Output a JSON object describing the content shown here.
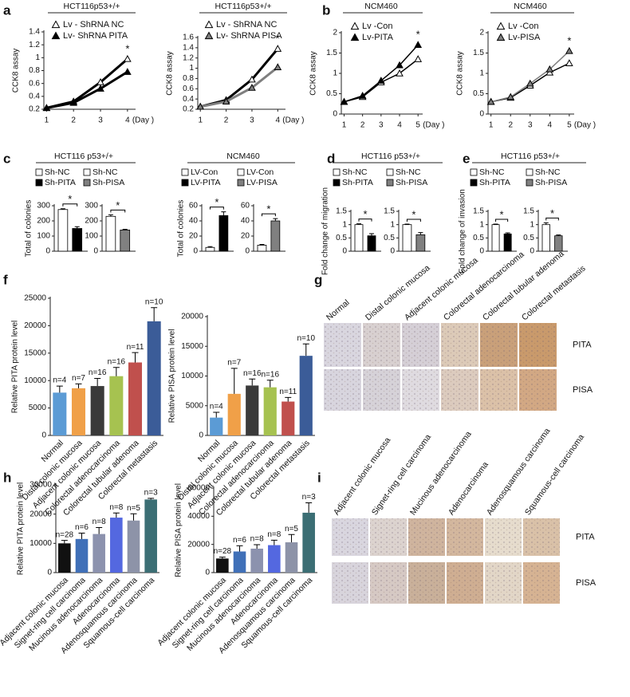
{
  "panel_labels": [
    "a",
    "b",
    "c",
    "d",
    "e",
    "f",
    "g",
    "h",
    "i"
  ],
  "chart_data": [
    {
      "type": "line",
      "title": "HCT116p53+/+",
      "y_label": "CCK8 assay",
      "x_label": "(Day )",
      "significance": "*",
      "x": [
        1,
        2,
        3,
        4
      ],
      "xlim": [
        0.9,
        4.3
      ],
      "xticks": [
        1,
        2,
        3,
        4
      ],
      "ylim": [
        0.2,
        1.4
      ],
      "yticks": [
        0.2,
        0.4,
        0.6,
        0.8,
        1,
        1.2,
        1.4
      ],
      "series": [
        {
          "name": "Lv - ShRNA NC",
          "color": "#000000",
          "marker": "open",
          "values": [
            0.22,
            0.32,
            0.62,
            0.98
          ]
        },
        {
          "name": "Lv- ShRNA PITA",
          "color": "#000000",
          "marker": "filled",
          "values": [
            0.22,
            0.3,
            0.52,
            0.78
          ]
        }
      ]
    },
    {
      "type": "line",
      "title": "HCT116p53+/+",
      "y_label": "CCK8 assay",
      "x_label": "(Day )",
      "significance": "*",
      "x": [
        1,
        2,
        3,
        4
      ],
      "xlim": [
        0.9,
        4.3
      ],
      "xticks": [
        1,
        2,
        3,
        4
      ],
      "ylim": [
        0.2,
        1.6
      ],
      "yticks": [
        0.2,
        0.4,
        0.6,
        0.8,
        1,
        1.2,
        1.4,
        1.6
      ],
      "series": [
        {
          "name": "Lv - ShRNA NC",
          "color": "#000000",
          "marker": "open",
          "values": [
            0.25,
            0.38,
            0.78,
            1.38
          ]
        },
        {
          "name": "Lv- ShRNA  PISA",
          "color": "#7f7f7f",
          "marker": "filled",
          "values": [
            0.25,
            0.35,
            0.62,
            1.02
          ]
        }
      ]
    },
    {
      "type": "line",
      "title": "NCM460",
      "y_label": "CCK8 assay",
      "x_label": "(Day )",
      "significance": "*",
      "x": [
        1,
        2,
        3,
        4,
        5
      ],
      "xlim": [
        0.85,
        5.25
      ],
      "xticks": [
        1,
        2,
        3,
        4,
        5
      ],
      "ylim": [
        0,
        2
      ],
      "yticks": [
        0,
        0.5,
        1,
        1.5,
        2
      ],
      "series": [
        {
          "name": "Lv -Con",
          "color": "#000000",
          "marker": "open",
          "values": [
            0.3,
            0.42,
            0.78,
            1.0,
            1.35
          ]
        },
        {
          "name": "Lv-PITA",
          "color": "#000000",
          "marker": "filled",
          "values": [
            0.3,
            0.45,
            0.82,
            1.2,
            1.7
          ]
        }
      ]
    },
    {
      "type": "line",
      "title": "NCM460",
      "y_label": "CCK8 assay",
      "x_label": "(Day )",
      "significance": "*",
      "x": [
        1,
        2,
        3,
        4,
        5
      ],
      "xlim": [
        0.85,
        5.25
      ],
      "xticks": [
        1,
        2,
        3,
        4,
        5
      ],
      "ylim": [
        0,
        2
      ],
      "yticks": [
        0,
        0.5,
        1,
        1.5,
        2
      ],
      "series": [
        {
          "name": "Lv -Con",
          "color": "#000000",
          "marker": "open",
          "values": [
            0.3,
            0.4,
            0.7,
            1.02,
            1.25
          ]
        },
        {
          "name": "Lv-PISA",
          "color": "#7f7f7f",
          "marker": "filled",
          "values": [
            0.3,
            0.42,
            0.75,
            1.1,
            1.55
          ]
        }
      ]
    },
    {
      "type": "bar",
      "title": "HCT116 p53+/+",
      "y_label": "Total of colonies",
      "significance": "*",
      "categories": [
        null
      ],
      "ylim": [
        0,
        300
      ],
      "yticks": [
        0,
        100,
        200,
        300
      ],
      "series": [
        {
          "name": "Sh-NC",
          "color": "#ffffff",
          "values": [
            275
          ],
          "errors": [
            5
          ]
        },
        {
          "name": "Sh-PITA",
          "color": "#000000",
          "values": [
            150
          ],
          "errors": [
            12
          ]
        }
      ]
    },
    {
      "type": "bar",
      "significance": "*",
      "categories": [
        null
      ],
      "ylim": [
        0,
        300
      ],
      "yticks": [
        0,
        100,
        200,
        300
      ],
      "series": [
        {
          "name": "Sh-NC",
          "color": "#ffffff",
          "values": [
            230
          ],
          "errors": [
            10
          ]
        },
        {
          "name": "Sh-PISA",
          "color": "#808080",
          "values": [
            140
          ],
          "errors": [
            5
          ]
        }
      ]
    },
    {
      "type": "bar",
      "title": "NCM460",
      "y_label": "Total of colonies",
      "significance": "*",
      "categories": [
        null
      ],
      "ylim": [
        0,
        60
      ],
      "yticks": [
        0,
        20,
        40,
        60
      ],
      "series": [
        {
          "name": "LV-Con",
          "color": "#ffffff",
          "values": [
            5
          ],
          "errors": [
            1
          ]
        },
        {
          "name": "LV-PITA",
          "color": "#000000",
          "values": [
            47
          ],
          "errors": [
            5
          ]
        }
      ]
    },
    {
      "type": "bar",
      "significance": "*",
      "categories": [
        null
      ],
      "ylim": [
        0,
        60
      ],
      "yticks": [
        0,
        20,
        40,
        60
      ],
      "series": [
        {
          "name": "LV-Con",
          "color": "#ffffff",
          "values": [
            8
          ],
          "errors": [
            1
          ]
        },
        {
          "name": "LV-PISA",
          "color": "#808080",
          "values": [
            40
          ],
          "errors": [
            3
          ]
        }
      ]
    },
    {
      "type": "bar",
      "title": "HCT116 p53+/+",
      "y_label": "Fold change of migration",
      "significance": "*",
      "categories": [
        null
      ],
      "ylim": [
        0,
        1.5
      ],
      "yticks": [
        0,
        0.5,
        1,
        1.5
      ],
      "series": [
        {
          "name": "Sh-NC",
          "color": "#ffffff",
          "values": [
            1.0
          ],
          "errors": [
            0.03
          ]
        },
        {
          "name": "Sh-PITA",
          "color": "#000000",
          "values": [
            0.58
          ],
          "errors": [
            0.08
          ]
        }
      ]
    },
    {
      "type": "bar",
      "significance": "*",
      "categories": [
        null
      ],
      "ylim": [
        0,
        1.5
      ],
      "yticks": [
        0,
        0.5,
        1,
        1.5
      ],
      "series": [
        {
          "name": "Sh-NC",
          "color": "#ffffff",
          "values": [
            1.0
          ],
          "errors": [
            0.02
          ]
        },
        {
          "name": "Sh-PISA",
          "color": "#808080",
          "values": [
            0.62
          ],
          "errors": [
            0.08
          ]
        }
      ]
    },
    {
      "type": "bar",
      "title": "HCT116 p53+/+",
      "y_label": "Fold change of invasion",
      "significance": "*",
      "categories": [
        null
      ],
      "ylim": [
        0,
        1.5
      ],
      "yticks": [
        0,
        0.5,
        1,
        1.5
      ],
      "series": [
        {
          "name": "Sh-NC",
          "color": "#ffffff",
          "values": [
            1.0
          ],
          "errors": [
            0.02
          ]
        },
        {
          "name": "Sh-PITA",
          "color": "#000000",
          "values": [
            0.65
          ],
          "errors": [
            0.04
          ]
        }
      ]
    },
    {
      "type": "bar",
      "significance": "*",
      "categories": [
        null
      ],
      "ylim": [
        0,
        1.5
      ],
      "yticks": [
        0,
        0.5,
        1,
        1.5
      ],
      "series": [
        {
          "name": "Sh-NC",
          "color": "#ffffff",
          "values": [
            1.0
          ],
          "errors": [
            0.07
          ]
        },
        {
          "name": "Sh-PISA",
          "color": "#808080",
          "values": [
            0.58
          ],
          "errors": [
            0.03
          ]
        }
      ]
    },
    {
      "type": "bar",
      "y_label": "Relative PITA  protein  level",
      "categories": [
        "Normal",
        "Distal colonic mucosa",
        "Adjacent colonic mucosa",
        "Colorectal adenocarcinoma",
        "Colorectal tubular adenoma",
        "Colorectal metastasis"
      ],
      "values": [
        7800,
        8600,
        9000,
        10800,
        13300,
        20800
      ],
      "errors": [
        1200,
        800,
        1400,
        1600,
        1800,
        2500
      ],
      "n_labels": [
        "n=4",
        "n=7",
        "n=16",
        "n=16",
        "n=11",
        "n=10"
      ],
      "colors": [
        "#5b9bd5",
        "#f0a048",
        "#3a3a3a",
        "#a6c250",
        "#c0504d",
        "#3b5c98"
      ],
      "ylim": [
        0,
        25000
      ],
      "yticks": [
        0,
        5000,
        10000,
        15000,
        20000,
        25000
      ]
    },
    {
      "type": "bar",
      "y_label": "Relative PISA  protein  level",
      "categories": [
        "Normal",
        "Distal colonic mucosa",
        "Adjacent colonic mucosa",
        "Colorectal adenocarcinoma",
        "Colorectal tubular adenoma",
        "Colorectal metastasis"
      ],
      "values": [
        3000,
        7000,
        8400,
        8100,
        5700,
        13400
      ],
      "errors": [
        900,
        4300,
        1100,
        1200,
        700,
        2000
      ],
      "n_labels": [
        "n=4",
        "n=7",
        "n=16",
        "n=16",
        "n=11",
        "n=10"
      ],
      "colors": [
        "#5b9bd5",
        "#f0a048",
        "#3a3a3a",
        "#a6c250",
        "#c0504d",
        "#3b5c98"
      ],
      "ylim": [
        0,
        20000
      ],
      "yticks": [
        0,
        5000,
        10000,
        15000,
        20000
      ]
    },
    {
      "type": "bar",
      "y_label": "Relative PITA  protein  level",
      "categories": [
        "Adjacent colonic mucosa",
        "Signet-ring cell carcinoma",
        "Mucinous adenocarcinoma",
        "Adenocarcinoma",
        "Adenosquamous carcinoma",
        "Squamous-cell carcinoma"
      ],
      "values": [
        10000,
        11500,
        13200,
        18800,
        17800,
        25000
      ],
      "errors": [
        1000,
        2000,
        2200,
        1600,
        2300,
        400
      ],
      "n_labels": [
        "n=28",
        "n=6",
        "n=8",
        "n=8",
        "n=5",
        "n=3"
      ],
      "colors": [
        "#111111",
        "#4070b8",
        "#8c92ae",
        "#5468e0",
        "#8d93a8",
        "#3b6e74"
      ],
      "ylim": [
        0,
        30000
      ],
      "yticks": [
        0,
        10000,
        20000,
        30000
      ]
    },
    {
      "type": "bar",
      "y_label": "Relative PISA  protein  level",
      "categories": [
        "Adjacent colonic mucosa",
        "Signet-ring cell carcinoma",
        "Mucinous adenocarcinoma",
        "Adenocarcinoma",
        "Adenosquamous carcinoma",
        "Squamous-cell carcinoma"
      ],
      "values": [
        10000,
        15000,
        17000,
        19500,
        21500,
        42500
      ],
      "errors": [
        1000,
        4000,
        2800,
        3500,
        5500,
        7000
      ],
      "n_labels": [
        "n=28",
        "n=6",
        "n=8",
        "n=8",
        "n=5",
        "n=3"
      ],
      "colors": [
        "#111111",
        "#4070b8",
        "#8c92ae",
        "#5468e0",
        "#8d93a8",
        "#3b6e74"
      ],
      "ylim": [
        0,
        60000
      ],
      "yticks": [
        0,
        20000,
        40000,
        60000
      ]
    }
  ],
  "image_panels": [
    {
      "columns": [
        "Normal",
        "Distal colonic mucosa",
        "Adjacent colonic mucosa",
        "Colorectal adenocarcinoma",
        "Colorectal tubular adenoma",
        "Colorectal metastasis"
      ],
      "rows": [
        "PITA",
        "PISA"
      ]
    },
    {
      "columns": [
        "Adjacent colonic mucosa",
        "Signet-ring cell carcinoma",
        "Mucinous adenocarcinoma",
        "Adenocarcinoma",
        "Adenosquamous carcinoma",
        "Squamous-cell carcinoma"
      ],
      "rows": [
        "PITA",
        "PISA"
      ]
    }
  ]
}
